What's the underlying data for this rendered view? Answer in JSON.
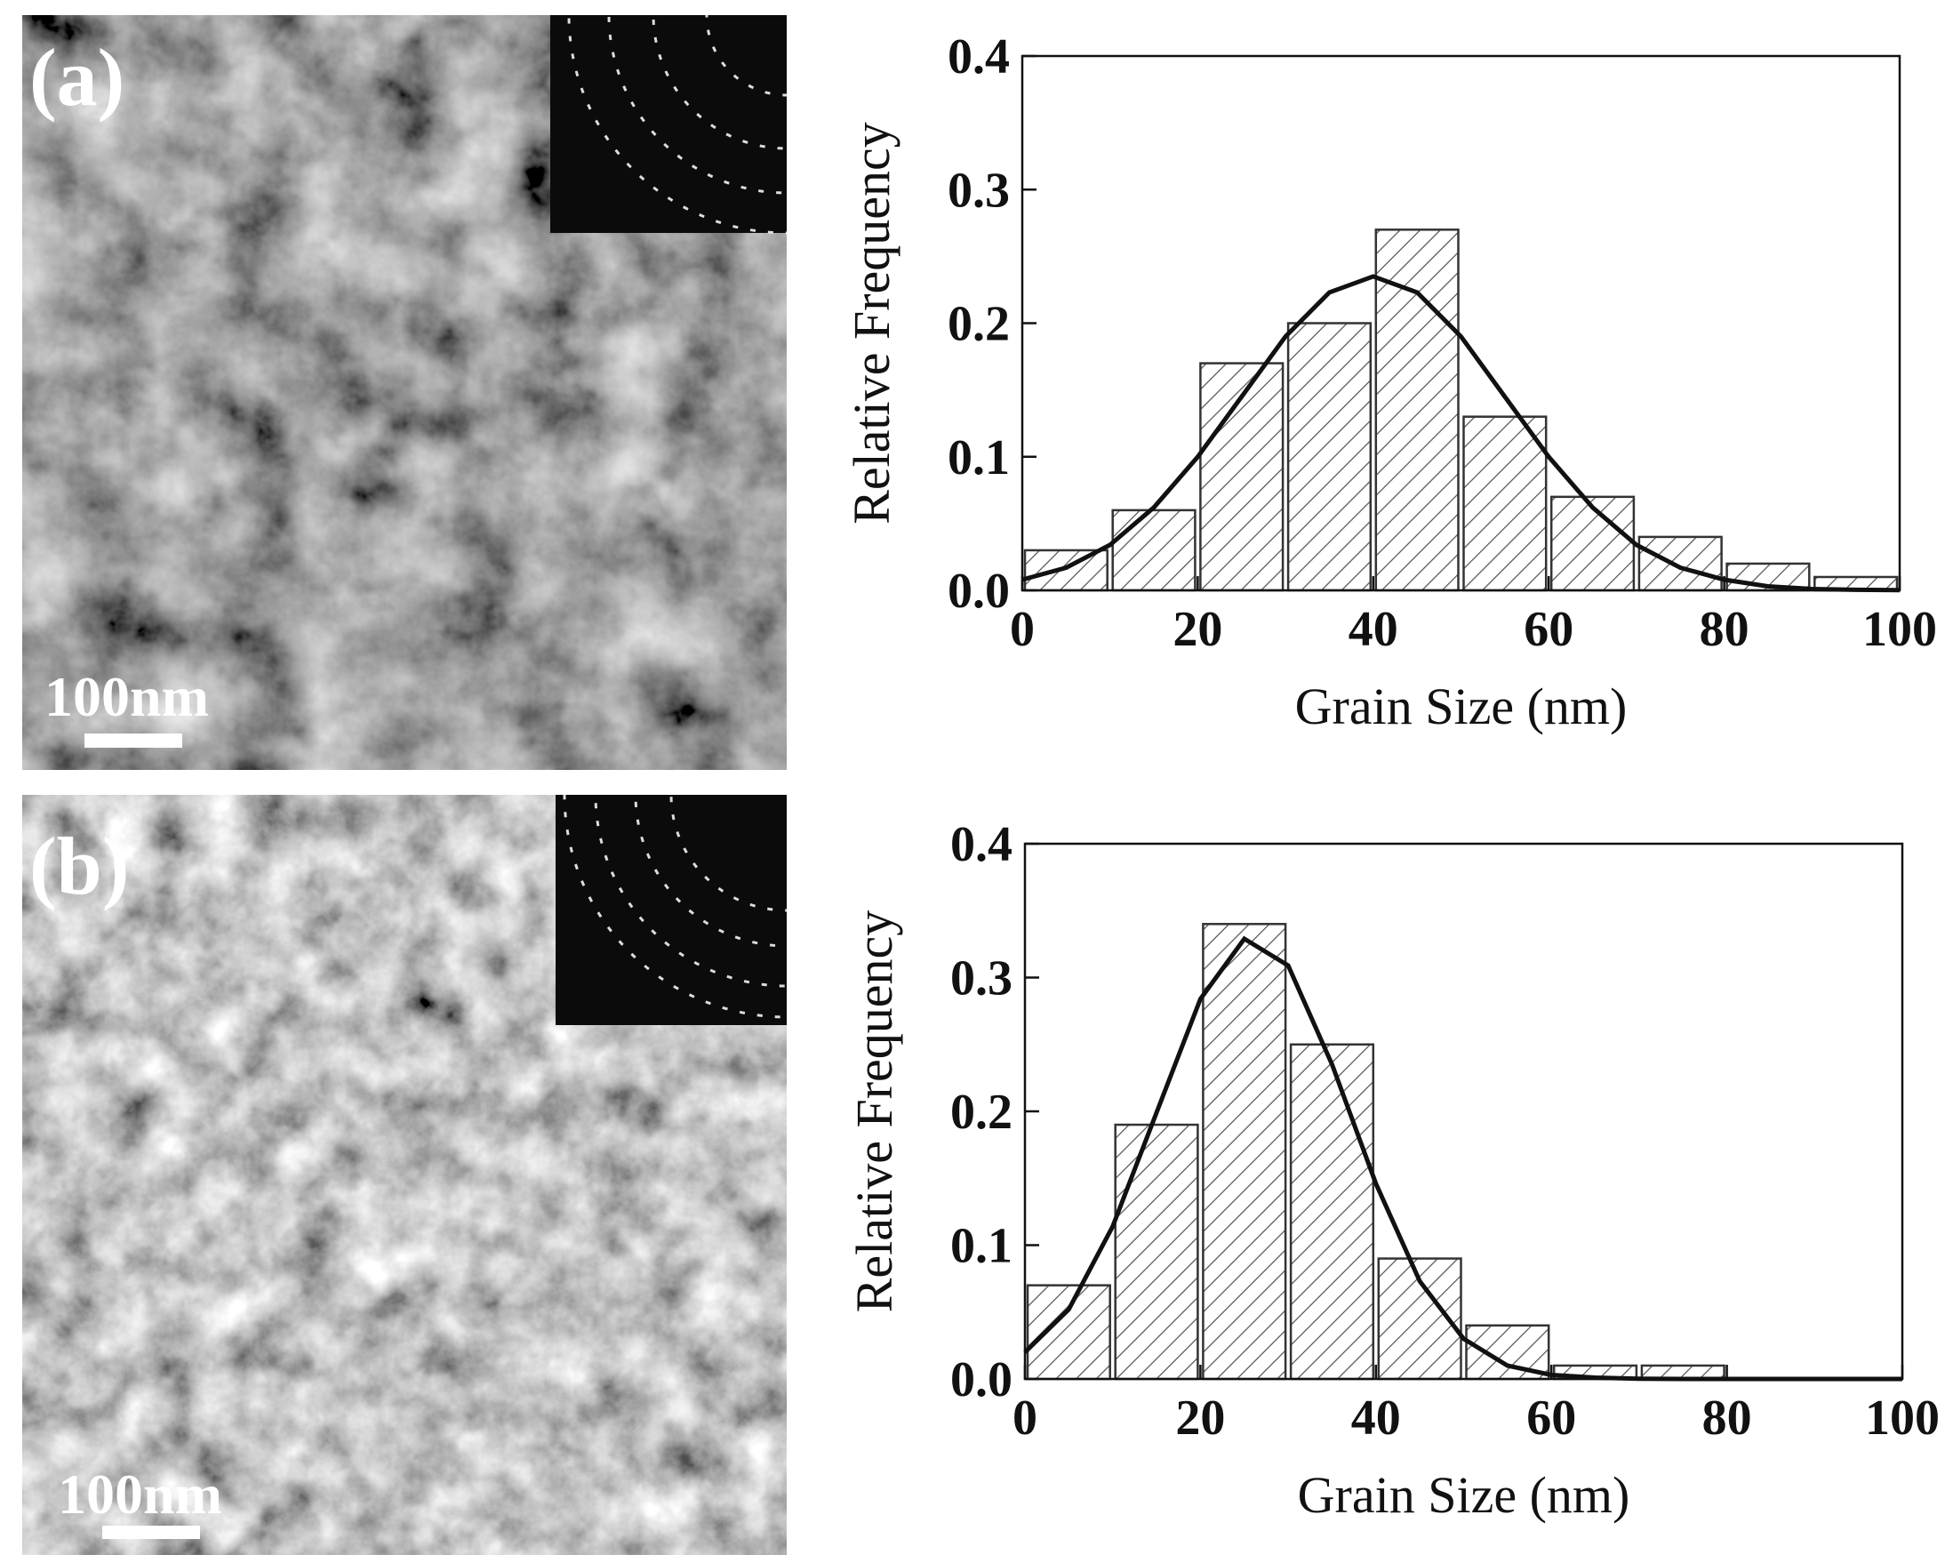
{
  "panels": [
    {
      "label": "(a)",
      "scale_bar": "100nm"
    },
    {
      "label": "(b)",
      "scale_bar": "100nm"
    }
  ],
  "chart_data": [
    {
      "type": "histogram",
      "xlabel": "Grain Size (nm)",
      "ylabel": "Relative Frequency",
      "bins": [
        0,
        10,
        20,
        30,
        40,
        50,
        60,
        70,
        80,
        90,
        100
      ],
      "values": [
        0.03,
        0.06,
        0.17,
        0.2,
        0.27,
        0.13,
        0.07,
        0.04,
        0.02,
        0.01
      ],
      "color": "#ffffff",
      "hatch_color": "#555555",
      "fit": {
        "color": "#111111",
        "x": [
          0,
          5,
          10,
          15,
          20,
          25,
          30,
          35,
          40,
          45,
          50,
          55,
          60,
          65,
          70,
          75,
          80,
          85,
          90,
          95,
          100
        ],
        "values": [
          0.008,
          0.017,
          0.034,
          0.062,
          0.1,
          0.145,
          0.19,
          0.223,
          0.235,
          0.223,
          0.19,
          0.145,
          0.1,
          0.062,
          0.034,
          0.017,
          0.008,
          0.003,
          0.001,
          0.0004,
          0.0001
        ]
      },
      "xlim": [
        0,
        100
      ],
      "ylim": [
        0,
        0.4
      ],
      "xticks": [
        0,
        20,
        40,
        60,
        80,
        100
      ],
      "yticks": [
        {
          "value": 0,
          "label": "0.0"
        },
        0.1,
        0.2,
        0.3,
        0.4
      ]
    },
    {
      "type": "histogram",
      "xlabel": "Grain Size (nm)",
      "ylabel": "Relative Frequency",
      "bins": [
        0,
        10,
        20,
        30,
        40,
        50,
        60,
        70,
        80,
        90,
        100
      ],
      "values": [
        0.07,
        0.19,
        0.34,
        0.25,
        0.09,
        0.04,
        0.01,
        0.01,
        0,
        0
      ],
      "color": "#ffffff",
      "hatch_color": "#555555",
      "fit": {
        "color": "#111111",
        "x": [
          0,
          5,
          10,
          15,
          20,
          25,
          30,
          35,
          40,
          45,
          50,
          55,
          60,
          65,
          70,
          75,
          80,
          85,
          90,
          95,
          100
        ],
        "values": [
          0.02,
          0.052,
          0.114,
          0.199,
          0.284,
          0.329,
          0.309,
          0.235,
          0.146,
          0.073,
          0.03,
          0.01,
          0.003,
          0.001,
          0.0002,
          0,
          0,
          0,
          0,
          0,
          0
        ]
      },
      "xlim": [
        0,
        100
      ],
      "ylim": [
        0,
        0.4
      ],
      "xticks": [
        0,
        20,
        40,
        60,
        80,
        100
      ],
      "yticks": [
        {
          "value": 0,
          "label": "0.0"
        },
        0.1,
        0.2,
        0.3,
        0.4
      ]
    }
  ]
}
